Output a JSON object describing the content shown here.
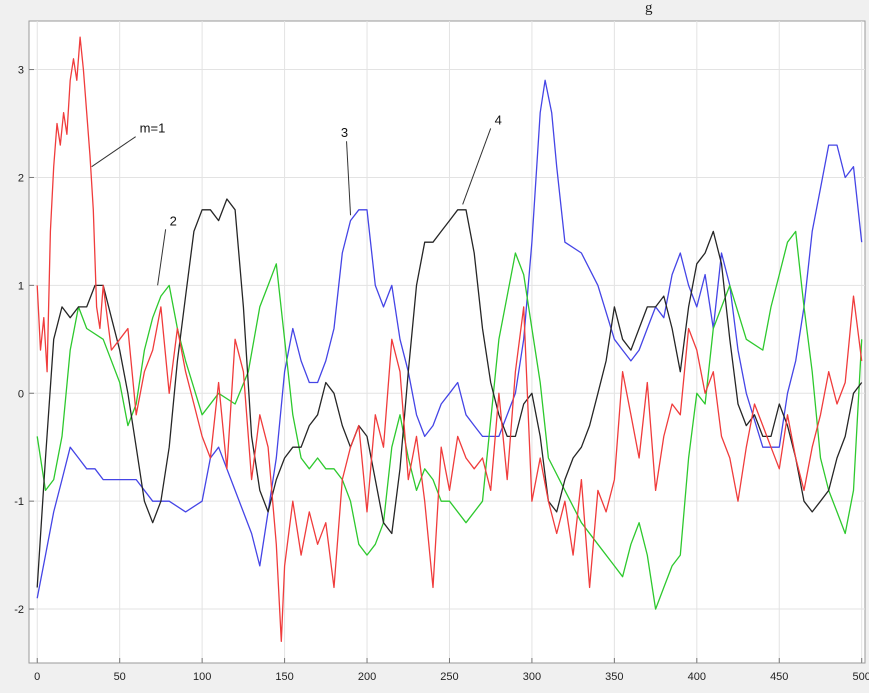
{
  "corner_text": "g",
  "chart_data": {
    "type": "line",
    "title": "",
    "xlabel": "",
    "ylabel": "",
    "xlim": [
      -5,
      502
    ],
    "ylim": [
      -2.5,
      3.45
    ],
    "grid": true,
    "xticks": [
      0,
      50,
      100,
      150,
      200,
      250,
      300,
      350,
      400,
      450,
      500
    ],
    "yticks": [
      -2,
      -1,
      0,
      1,
      2,
      3
    ],
    "colors": {
      "1": "#f03c3c",
      "2": "#2ec92e",
      "3": "#4545e6",
      "4": "#262626"
    },
    "series": [
      {
        "name": "m=1",
        "x": [
          0,
          2,
          4,
          6,
          8,
          10,
          12,
          14,
          16,
          18,
          20,
          22,
          24,
          26,
          28,
          30,
          32,
          34,
          36,
          38,
          40,
          45,
          50,
          55,
          60,
          65,
          70,
          75,
          80,
          85,
          90,
          95,
          100,
          105,
          110,
          115,
          120,
          125,
          130,
          135,
          140,
          145,
          148,
          150,
          155,
          160,
          165,
          170,
          175,
          180,
          185,
          190,
          195,
          200,
          205,
          210,
          215,
          220,
          225,
          230,
          235,
          240,
          245,
          250,
          255,
          260,
          265,
          270,
          275,
          280,
          285,
          290,
          295,
          300,
          305,
          310,
          315,
          320,
          325,
          330,
          335,
          340,
          345,
          350,
          355,
          360,
          365,
          370,
          375,
          380,
          385,
          390,
          395,
          400,
          405,
          410,
          415,
          420,
          425,
          430,
          435,
          440,
          445,
          450,
          455,
          460,
          465,
          470,
          475,
          480,
          485,
          490,
          495,
          500
        ],
        "y": [
          1.0,
          0.4,
          0.7,
          0.2,
          1.5,
          2.1,
          2.5,
          2.3,
          2.6,
          2.4,
          2.9,
          3.1,
          2.9,
          3.3,
          3.0,
          2.6,
          2.2,
          1.7,
          0.8,
          0.6,
          1.0,
          0.4,
          0.5,
          0.6,
          -0.2,
          0.2,
          0.4,
          0.8,
          0.0,
          0.6,
          0.2,
          -0.1,
          -0.4,
          -0.6,
          0.1,
          -0.7,
          0.5,
          0.2,
          -0.8,
          -0.2,
          -0.5,
          -1.4,
          -2.3,
          -1.6,
          -1.0,
          -1.5,
          -1.1,
          -1.4,
          -1.2,
          -1.8,
          -0.8,
          -0.5,
          -0.3,
          -1.1,
          -0.2,
          -0.5,
          0.5,
          0.2,
          -0.8,
          -0.4,
          -1.0,
          -1.8,
          -0.5,
          -0.9,
          -0.4,
          -0.6,
          -0.7,
          -0.6,
          -0.9,
          0.0,
          -0.8,
          0.2,
          0.8,
          -1.0,
          -0.6,
          -1.0,
          -1.3,
          -1.0,
          -1.5,
          -0.8,
          -1.8,
          -0.9,
          -1.1,
          -0.8,
          0.2,
          -0.2,
          -0.6,
          0.1,
          -0.9,
          -0.4,
          -0.1,
          -0.2,
          0.6,
          0.4,
          0.0,
          0.2,
          -0.4,
          -0.6,
          -1.0,
          -0.5,
          -0.1,
          -0.3,
          -0.5,
          -0.7,
          -0.2,
          -0.6,
          -0.9,
          -0.5,
          -0.2,
          0.2,
          -0.1,
          0.1,
          0.9,
          0.3
        ]
      },
      {
        "name": "2",
        "x": [
          0,
          5,
          10,
          15,
          20,
          25,
          30,
          40,
          50,
          55,
          60,
          65,
          70,
          75,
          80,
          85,
          90,
          100,
          110,
          120,
          128,
          135,
          140,
          145,
          150,
          155,
          160,
          165,
          170,
          175,
          180,
          185,
          190,
          195,
          200,
          205,
          210,
          215,
          220,
          225,
          230,
          235,
          240,
          245,
          250,
          260,
          270,
          280,
          290,
          295,
          300,
          305,
          310,
          320,
          330,
          340,
          350,
          355,
          360,
          365,
          370,
          375,
          380,
          385,
          390,
          395,
          400,
          405,
          410,
          420,
          430,
          440,
          445,
          450,
          455,
          460,
          465,
          470,
          475,
          480,
          485,
          490,
          495,
          500
        ],
        "y": [
          -0.4,
          -0.9,
          -0.8,
          -0.4,
          0.4,
          0.8,
          0.6,
          0.5,
          0.1,
          -0.3,
          -0.1,
          0.4,
          0.7,
          0.9,
          1.0,
          0.6,
          0.3,
          -0.2,
          0.0,
          -0.1,
          0.2,
          0.8,
          1.0,
          1.2,
          0.5,
          -0.2,
          -0.6,
          -0.7,
          -0.6,
          -0.7,
          -0.7,
          -0.8,
          -1.0,
          -1.4,
          -1.5,
          -1.4,
          -1.2,
          -0.5,
          -0.2,
          -0.6,
          -0.9,
          -0.7,
          -0.8,
          -1.0,
          -1.0,
          -1.2,
          -1.0,
          0.5,
          1.3,
          1.1,
          0.6,
          0.1,
          -0.6,
          -0.9,
          -1.2,
          -1.4,
          -1.6,
          -1.7,
          -1.4,
          -1.2,
          -1.5,
          -2.0,
          -1.8,
          -1.6,
          -1.5,
          -0.6,
          0.0,
          -0.1,
          0.6,
          1.0,
          0.5,
          0.4,
          0.8,
          1.1,
          1.4,
          1.5,
          0.8,
          0.2,
          -0.6,
          -0.9,
          -1.1,
          -1.3,
          -0.9,
          0.5
        ]
      },
      {
        "name": "3",
        "x": [
          0,
          5,
          10,
          15,
          20,
          25,
          30,
          35,
          40,
          50,
          60,
          70,
          80,
          90,
          100,
          105,
          110,
          120,
          130,
          135,
          140,
          145,
          150,
          155,
          160,
          165,
          170,
          175,
          180,
          185,
          190,
          195,
          200,
          205,
          210,
          215,
          220,
          225,
          230,
          235,
          240,
          245,
          250,
          255,
          260,
          265,
          270,
          280,
          290,
          295,
          300,
          305,
          308,
          312,
          315,
          320,
          330,
          340,
          350,
          355,
          360,
          365,
          370,
          375,
          380,
          385,
          390,
          395,
          400,
          405,
          410,
          415,
          420,
          425,
          430,
          440,
          450,
          455,
          460,
          465,
          470,
          475,
          480,
          485,
          490,
          495,
          500
        ],
        "y": [
          -1.9,
          -1.5,
          -1.1,
          -0.8,
          -0.5,
          -0.6,
          -0.7,
          -0.7,
          -0.8,
          -0.8,
          -0.8,
          -1.0,
          -1.0,
          -1.1,
          -1.0,
          -0.6,
          -0.5,
          -0.9,
          -1.3,
          -1.6,
          -1.1,
          -0.6,
          0.2,
          0.6,
          0.3,
          0.1,
          0.1,
          0.3,
          0.6,
          1.3,
          1.6,
          1.7,
          1.7,
          1.0,
          0.8,
          1.0,
          0.5,
          0.2,
          -0.2,
          -0.4,
          -0.3,
          -0.1,
          0.0,
          0.1,
          -0.2,
          -0.3,
          -0.4,
          -0.4,
          0.0,
          0.5,
          1.4,
          2.6,
          2.9,
          2.6,
          2.1,
          1.4,
          1.3,
          1.0,
          0.5,
          0.4,
          0.3,
          0.4,
          0.6,
          0.8,
          0.7,
          1.1,
          1.3,
          1.0,
          0.8,
          1.1,
          0.6,
          1.3,
          1.0,
          0.4,
          0.0,
          -0.5,
          -0.5,
          0.0,
          0.3,
          0.8,
          1.5,
          1.9,
          2.3,
          2.3,
          2.0,
          2.1,
          1.4
        ]
      },
      {
        "name": "4",
        "x": [
          0,
          5,
          10,
          15,
          20,
          25,
          30,
          35,
          40,
          45,
          50,
          55,
          60,
          65,
          70,
          75,
          80,
          85,
          90,
          95,
          100,
          105,
          110,
          115,
          120,
          125,
          130,
          135,
          140,
          145,
          150,
          155,
          160,
          165,
          170,
          175,
          180,
          185,
          190,
          195,
          200,
          205,
          210,
          215,
          220,
          225,
          230,
          235,
          240,
          245,
          250,
          255,
          260,
          265,
          270,
          275,
          280,
          285,
          290,
          295,
          300,
          305,
          310,
          315,
          320,
          325,
          330,
          335,
          340,
          345,
          350,
          355,
          360,
          365,
          370,
          375,
          380,
          385,
          390,
          395,
          400,
          405,
          410,
          415,
          420,
          425,
          430,
          435,
          440,
          445,
          450,
          455,
          460,
          465,
          470,
          475,
          480,
          485,
          490,
          495,
          500
        ],
        "y": [
          -1.8,
          -0.6,
          0.5,
          0.8,
          0.7,
          0.8,
          0.8,
          1.0,
          1.0,
          0.7,
          0.4,
          0.0,
          -0.5,
          -1.0,
          -1.2,
          -1.0,
          -0.5,
          0.3,
          0.9,
          1.5,
          1.7,
          1.7,
          1.6,
          1.8,
          1.7,
          0.8,
          -0.4,
          -0.9,
          -1.1,
          -0.8,
          -0.6,
          -0.5,
          -0.5,
          -0.3,
          -0.2,
          0.1,
          0.0,
          -0.3,
          -0.5,
          -0.3,
          -0.4,
          -0.8,
          -1.2,
          -1.3,
          -0.7,
          0.2,
          1.0,
          1.4,
          1.4,
          1.5,
          1.6,
          1.7,
          1.7,
          1.3,
          0.6,
          0.1,
          -0.2,
          -0.4,
          -0.4,
          -0.1,
          0.0,
          -0.4,
          -1.0,
          -1.1,
          -0.8,
          -0.6,
          -0.5,
          -0.3,
          0.0,
          0.3,
          0.8,
          0.5,
          0.4,
          0.6,
          0.8,
          0.8,
          0.9,
          0.6,
          0.2,
          0.8,
          1.2,
          1.3,
          1.5,
          1.2,
          0.5,
          -0.1,
          -0.3,
          -0.2,
          -0.4,
          -0.4,
          -0.1,
          -0.3,
          -0.6,
          -1.0,
          -1.1,
          -1.0,
          -0.9,
          -0.6,
          -0.4,
          0.0,
          0.1
        ]
      }
    ],
    "annotations": [
      {
        "text": "m=1",
        "series": "m=1",
        "x": 33,
        "y": 2.1
      },
      {
        "text": "2",
        "series": "2",
        "x": 73,
        "y": 1.0
      },
      {
        "text": "3",
        "series": "3",
        "x": 190,
        "y": 1.65
      },
      {
        "text": "4",
        "series": "4",
        "x": 258,
        "y": 1.75
      }
    ]
  }
}
